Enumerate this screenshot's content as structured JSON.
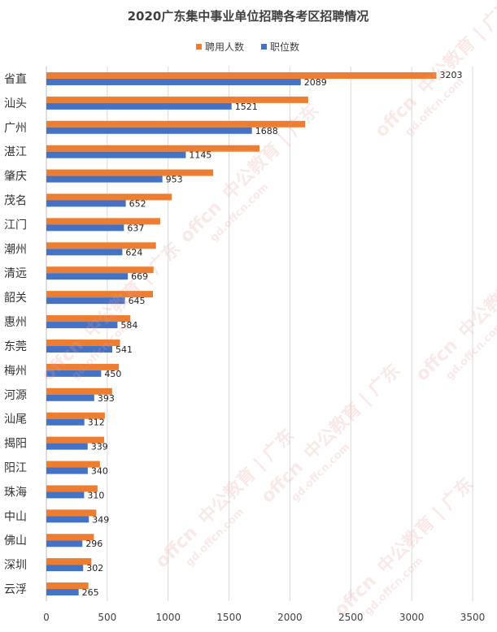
{
  "chart_data": {
    "type": "bar",
    "orientation": "horizontal",
    "title": "2020广东集中事业单位招聘各考区招聘情况",
    "categories": [
      "省直",
      "汕头",
      "广州",
      "湛江",
      "肇庆",
      "茂名",
      "江门",
      "潮州",
      "清远",
      "韶关",
      "惠州",
      "东莞",
      "梅州",
      "河源",
      "汕尾",
      "揭阳",
      "阳江",
      "珠海",
      "中山",
      "佛山",
      "深圳",
      "云浮"
    ],
    "series": [
      {
        "name": "聘用人数",
        "color": "#ED7D31",
        "values": [
          3203,
          2150,
          2125,
          1750,
          1370,
          1030,
          935,
          900,
          880,
          875,
          690,
          605,
          595,
          540,
          480,
          475,
          440,
          420,
          410,
          390,
          370,
          345
        ]
      },
      {
        "name": "职位数",
        "color": "#4472C4",
        "values": [
          2089,
          1521,
          1688,
          1145,
          953,
          652,
          637,
          624,
          669,
          645,
          584,
          541,
          450,
          393,
          312,
          339,
          340,
          310,
          349,
          296,
          302,
          265
        ]
      }
    ],
    "data_labels_series": "职位数",
    "data_labels_extra": [
      {
        "series": "聘用人数",
        "category": "省直",
        "value": 3203
      }
    ],
    "xlim": [
      0,
      3500
    ],
    "xticks": [
      0,
      500,
      1000,
      1500,
      2000,
      2500,
      3000,
      3500
    ],
    "grid": true,
    "legend": "top-right"
  },
  "watermark": {
    "brand": "offcn",
    "text": "中公教育 | 广东",
    "url": "gd.offcn.com"
  }
}
